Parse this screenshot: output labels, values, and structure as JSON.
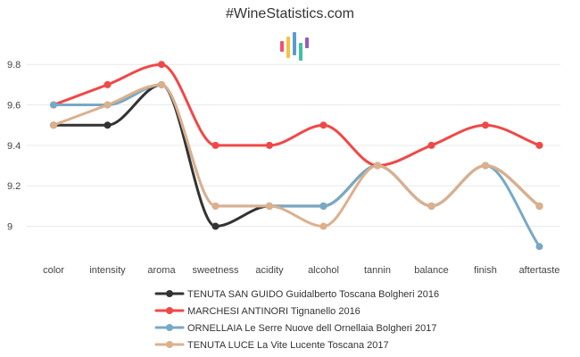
{
  "page": {
    "title": "#WineStatistics.com"
  },
  "logo": {
    "name": "wine-statistics-logo",
    "colors": [
      "#f0506e",
      "#f5c242",
      "#5b9bd5",
      "#3fc1a0",
      "#9b59b6"
    ]
  },
  "chart_data": {
    "type": "line",
    "title": "#WineStatistics.com",
    "categories": [
      "color",
      "intensity",
      "aroma",
      "sweetness",
      "acidity",
      "alcohol",
      "tannin",
      "balance",
      "finish",
      "aftertaste"
    ],
    "yticks": [
      "9",
      "9.2",
      "9.4",
      "9.6",
      "9.8"
    ],
    "ylim": [
      8.87,
      9.92
    ],
    "grid": true,
    "legend_position": "bottom",
    "series": [
      {
        "name": "TENUTA SAN GUIDO Guidalberto Toscana Bolgheri 2016",
        "color": "#333333",
        "values": [
          9.5,
          9.5,
          9.7,
          9.0,
          9.1,
          9.1,
          9.3,
          9.1,
          9.3,
          9.1
        ]
      },
      {
        "name": "MARCHESI ANTINORI Tignanello 2016",
        "color": "#f04848",
        "values": [
          9.6,
          9.7,
          9.8,
          9.4,
          9.4,
          9.5,
          9.3,
          9.4,
          9.5,
          9.4
        ]
      },
      {
        "name": "ORNELLAIA Le Serre Nuove dell Ornellaia Bolgheri 2017",
        "color": "#78a9c4",
        "values": [
          9.6,
          9.6,
          9.7,
          9.1,
          9.1,
          9.1,
          9.3,
          9.1,
          9.3,
          8.9
        ]
      },
      {
        "name": "TENUTA LUCE La Vite Lucente Toscana 2017",
        "color": "#dcb08c",
        "values": [
          9.5,
          9.6,
          9.7,
          9.1,
          9.1,
          9.0,
          9.3,
          9.1,
          9.3,
          9.1
        ]
      }
    ]
  }
}
